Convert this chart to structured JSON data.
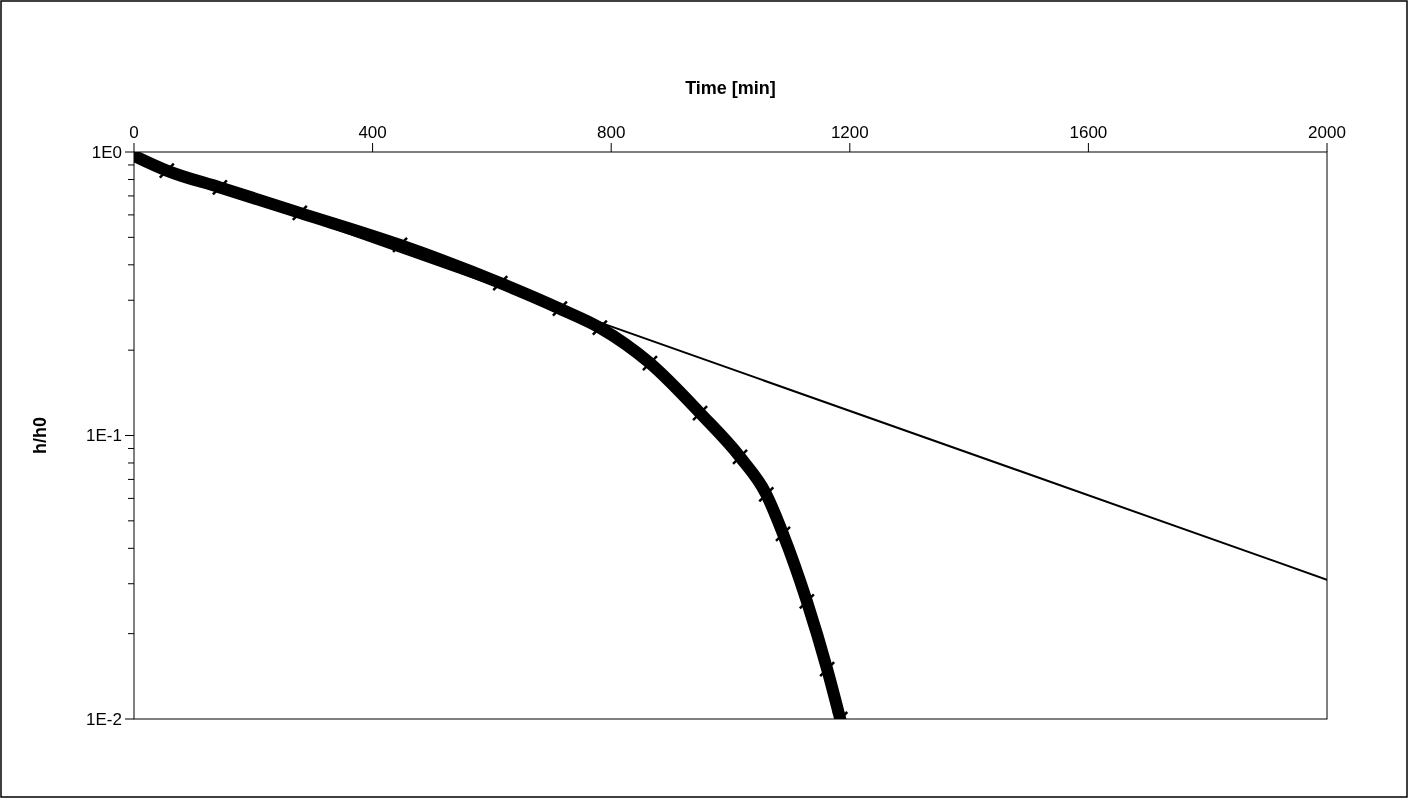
{
  "chart_data": {
    "type": "line",
    "xlabel": "Time [min]",
    "ylabel": "h/h0",
    "log": "y",
    "xlim": [
      0,
      2000
    ],
    "xticks": [
      0,
      400,
      800,
      1200,
      1600,
      2000
    ],
    "ylim": [
      0.01,
      1
    ],
    "yticks": [
      {
        "value": 1,
        "label": "1E0"
      },
      {
        "value": 0.9,
        "label": null
      },
      {
        "value": 0.8,
        "label": null
      },
      {
        "value": 0.7,
        "label": null
      },
      {
        "value": 0.6,
        "label": null
      },
      {
        "value": 0.5,
        "label": null
      },
      {
        "value": 0.4,
        "label": null
      },
      {
        "value": 0.3,
        "label": null
      },
      {
        "value": 0.2,
        "label": null
      },
      {
        "value": 0.1,
        "label": "1E-1"
      },
      {
        "value": 0.09,
        "label": null
      },
      {
        "value": 0.08,
        "label": null
      },
      {
        "value": 0.07,
        "label": null
      },
      {
        "value": 0.06,
        "label": null
      },
      {
        "value": 0.05,
        "label": null
      },
      {
        "value": 0.04,
        "label": null
      },
      {
        "value": 0.03,
        "label": null
      },
      {
        "value": 0.02,
        "label": null
      },
      {
        "value": 0.01,
        "label": "1E-2"
      }
    ],
    "series": [
      {
        "color": "#000000",
        "x": [
          0,
          2000
        ],
        "values": [
          0.955,
          0.031
        ],
        "marker": "none"
      },
      {
        "color": "#000000",
        "marker": "cross",
        "x": [
          0,
          55,
          144,
          278,
          446,
          614,
          714,
          781,
          865,
          949,
          1016,
          1060,
          1088,
          1128,
          1162,
          1184
        ],
        "values": [
          0.97,
          0.86,
          0.75,
          0.61,
          0.47,
          0.345,
          0.28,
          0.24,
          0.18,
          0.12,
          0.084,
          0.062,
          0.045,
          0.026,
          0.015,
          0.01
        ]
      }
    ]
  }
}
